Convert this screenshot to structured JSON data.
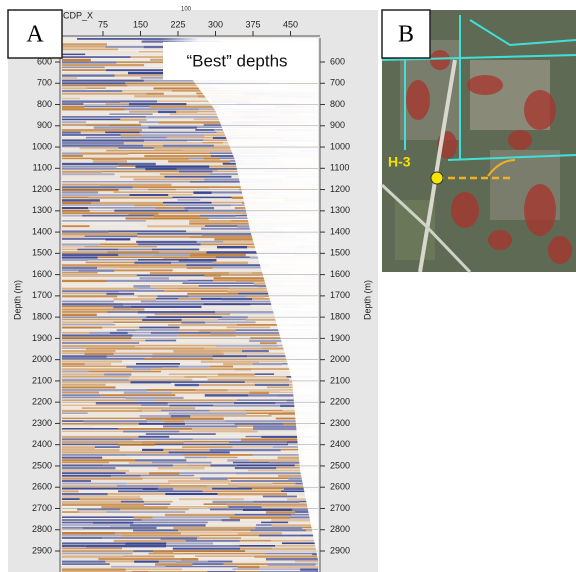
{
  "panel_a": {
    "label": "A",
    "x_axis": {
      "label": "CDP_X",
      "extra": "100",
      "ticks": [
        75,
        150,
        225,
        300,
        375,
        450
      ]
    },
    "depth_axis": {
      "label": "Depth (m)",
      "ticks": [
        600,
        700,
        800,
        900,
        1000,
        1100,
        1200,
        1300,
        1400,
        1500,
        1600,
        1700,
        1800,
        1900,
        2000,
        2100,
        2200,
        2300,
        2400,
        2500,
        2600,
        2700,
        2800,
        2900
      ]
    },
    "annotation": "“Best” depths"
  },
  "panel_b": {
    "label": "B",
    "well": "H-3"
  }
}
